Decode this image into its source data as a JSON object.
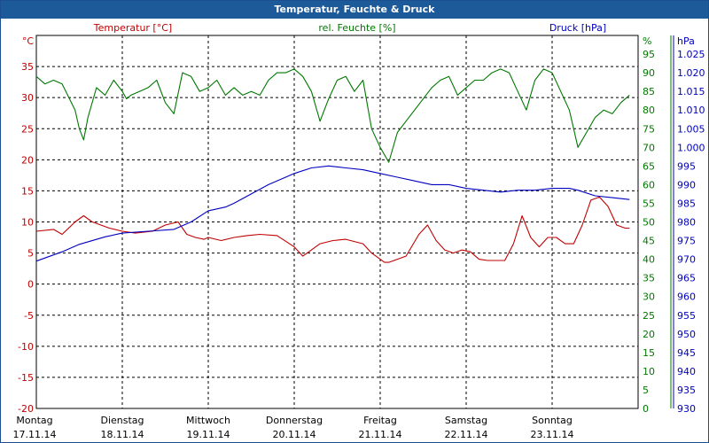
{
  "window": {
    "title": "Temperatur, Feuchte & Druck"
  },
  "colors": {
    "temperature": "#c00000",
    "humidity": "#007800",
    "pressure": "#0000c0",
    "grid": "#000000",
    "titlebar": "#1d5a9a"
  },
  "chart_data": {
    "type": "line",
    "title": "Temperatur, Feuchte & Druck",
    "x_range": [
      0,
      7
    ],
    "x_days": [
      {
        "day": "Montag",
        "date": "17.11.14"
      },
      {
        "day": "Dienstag",
        "date": "18.11.14"
      },
      {
        "day": "Mittwoch",
        "date": "19.11.14"
      },
      {
        "day": "Donnerstag",
        "date": "20.11.14"
      },
      {
        "day": "Freitag",
        "date": "21.11.14"
      },
      {
        "day": "Samstag",
        "date": "22.11.14"
      },
      {
        "day": "Sonntag",
        "date": "23.11.14"
      }
    ],
    "axes": {
      "temperature": {
        "label": "Temperatur [°C]",
        "unit": "°C",
        "range": [
          -20,
          40
        ],
        "ticks": [
          -20,
          -15,
          -10,
          -5,
          0,
          5,
          10,
          15,
          20,
          25,
          30,
          35
        ]
      },
      "humidity": {
        "label": "rel. Feuchte [%]",
        "unit": "%",
        "range": [
          0,
          100
        ],
        "ticks": [
          0,
          5,
          10,
          15,
          20,
          25,
          30,
          35,
          40,
          45,
          50,
          55,
          60,
          65,
          70,
          75,
          80,
          85,
          90,
          95
        ]
      },
      "pressure": {
        "label": "Druck [hPa]",
        "unit": "hPa",
        "range": [
          930,
          1030
        ],
        "ticks": [
          "930",
          "935",
          "940",
          "945",
          "950",
          "955",
          "960",
          "965",
          "970",
          "975",
          "980",
          "985",
          "990",
          "995",
          "1.000",
          "1.005",
          "1.010",
          "1.015",
          "1.020",
          "1.025"
        ]
      }
    },
    "grid": true,
    "series": [
      {
        "name": "Temperatur [°C]",
        "axis": "temperature",
        "x": [
          0,
          0.2,
          0.3,
          0.45,
          0.55,
          0.65,
          0.75,
          0.85,
          1.0,
          1.15,
          1.35,
          1.5,
          1.65,
          1.75,
          1.85,
          1.95,
          2.0,
          2.15,
          2.3,
          2.45,
          2.6,
          2.8,
          3.0,
          3.1,
          3.2,
          3.3,
          3.45,
          3.6,
          3.8,
          3.9,
          4.0,
          4.05,
          4.1,
          4.2,
          4.3,
          4.45,
          4.55,
          4.65,
          4.75,
          4.85,
          4.95,
          5.05,
          5.15,
          5.25,
          5.35,
          5.45,
          5.55,
          5.65,
          5.75,
          5.85,
          5.95,
          6.05,
          6.15,
          6.25,
          6.35,
          6.45,
          6.55,
          6.65,
          6.75,
          6.85,
          6.9
        ],
        "values": [
          8.5,
          8.8,
          8,
          10,
          11,
          10,
          9.5,
          9,
          8.5,
          8.2,
          8.5,
          9.5,
          10,
          8,
          7.5,
          7.2,
          7.5,
          7,
          7.5,
          7.8,
          8,
          7.8,
          6,
          4.5,
          5.5,
          6.5,
          7,
          7.2,
          6.5,
          5,
          4,
          3.5,
          3.5,
          4,
          4.5,
          8,
          9.5,
          7,
          5.5,
          5,
          5.5,
          5.2,
          4,
          3.8,
          3.8,
          3.8,
          6.5,
          11,
          7.5,
          6,
          7.5,
          7.5,
          6.5,
          6.5,
          9.5,
          13.5,
          14,
          12.5,
          9.5,
          9,
          9
        ]
      },
      {
        "name": "rel. Feuchte [%]",
        "axis": "humidity",
        "x": [
          0,
          0.1,
          0.2,
          0.3,
          0.45,
          0.5,
          0.55,
          0.6,
          0.7,
          0.8,
          0.9,
          1.0,
          1.05,
          1.1,
          1.2,
          1.3,
          1.4,
          1.5,
          1.6,
          1.7,
          1.8,
          1.9,
          2.0,
          2.1,
          2.2,
          2.3,
          2.4,
          2.5,
          2.6,
          2.7,
          2.8,
          2.9,
          3.0,
          3.1,
          3.2,
          3.3,
          3.4,
          3.5,
          3.6,
          3.7,
          3.8,
          3.9,
          4.0,
          4.1,
          4.2,
          4.3,
          4.4,
          4.5,
          4.6,
          4.7,
          4.8,
          4.9,
          5.0,
          5.1,
          5.2,
          5.3,
          5.4,
          5.5,
          5.6,
          5.7,
          5.8,
          5.9,
          6.0,
          6.1,
          6.2,
          6.3,
          6.4,
          6.5,
          6.6,
          6.7,
          6.8,
          6.9
        ],
        "values": [
          89,
          87,
          88,
          87,
          80,
          75,
          72,
          78,
          86,
          84,
          88,
          85,
          83,
          84,
          85,
          86,
          88,
          82,
          79,
          90,
          89,
          85,
          86,
          88,
          84,
          86,
          84,
          85,
          84,
          88,
          90,
          90,
          91,
          89,
          85,
          77,
          83,
          88,
          89,
          85,
          88,
          75,
          70,
          66,
          74,
          77,
          80,
          83,
          86,
          88,
          89,
          84,
          86,
          88,
          88,
          90,
          91,
          90,
          85,
          80,
          88,
          91,
          90,
          85,
          80,
          70,
          74,
          78,
          80,
          79,
          82,
          84
        ]
      },
      {
        "name": "Druck [hPa]",
        "axis": "pressure",
        "x": [
          0,
          0.3,
          0.5,
          0.8,
          1.0,
          1.3,
          1.6,
          1.8,
          2.0,
          2.2,
          2.3,
          2.5,
          2.7,
          2.9,
          3.0,
          3.2,
          3.4,
          3.6,
          3.8,
          4.0,
          4.2,
          4.4,
          4.6,
          4.8,
          5.0,
          5.2,
          5.4,
          5.6,
          5.8,
          6.0,
          6.2,
          6.3,
          6.5,
          6.7,
          6.9
        ],
        "values": [
          969.5,
          972,
          974,
          976,
          977,
          977.5,
          978,
          980,
          983,
          984,
          985,
          987.5,
          990,
          992,
          993,
          994.5,
          995,
          994.5,
          994,
          993,
          992,
          991,
          990,
          990,
          989,
          988.5,
          988,
          988.5,
          988.5,
          989,
          989,
          988.5,
          987,
          986.5,
          986
        ]
      }
    ]
  }
}
